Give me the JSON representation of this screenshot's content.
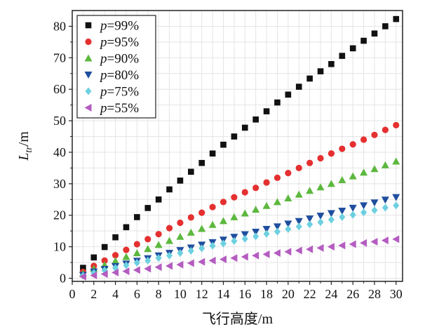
{
  "chart_data": {
    "type": "scatter",
    "title": "",
    "xlabel": "飞行高度/m",
    "ylabel_main": "L",
    "ylabel_sub": "tr",
    "ylabel_unit": "/m",
    "xlim": [
      0,
      30.6
    ],
    "ylim": [
      -1,
      85
    ],
    "xticks": [
      0,
      2,
      4,
      6,
      8,
      10,
      12,
      14,
      16,
      18,
      20,
      22,
      24,
      26,
      28,
      30
    ],
    "yticks": [
      0,
      10,
      20,
      30,
      40,
      50,
      60,
      70,
      80
    ],
    "x": [
      1,
      2,
      3,
      4,
      5,
      6,
      7,
      8,
      9,
      10,
      11,
      12,
      13,
      14,
      15,
      16,
      17,
      18,
      19,
      20,
      21,
      22,
      23,
      24,
      25,
      26,
      27,
      28,
      29,
      30
    ],
    "grid": true,
    "legend_position": "top-left",
    "series": [
      {
        "name": "p=99%",
        "legend_var": "p",
        "legend_rest": "=99%",
        "marker": "square",
        "color": "#111111",
        "values": [
          3.3,
          6.6,
          9.9,
          13.0,
          16.2,
          19.4,
          22.3,
          25.0,
          28.2,
          31.0,
          33.8,
          36.6,
          39.6,
          42.4,
          45.0,
          47.8,
          50.4,
          53.0,
          55.8,
          58.3,
          60.8,
          63.4,
          65.7,
          68.0,
          70.6,
          73.0,
          75.4,
          77.7,
          80.0,
          82.3
        ]
      },
      {
        "name": "p=95%",
        "legend_var": "p",
        "legend_rest": "=95%",
        "marker": "circle",
        "color": "#e53030",
        "values": [
          2.0,
          3.9,
          5.6,
          7.3,
          9.0,
          10.8,
          12.4,
          14.0,
          15.9,
          17.6,
          19.3,
          20.8,
          22.6,
          24.2,
          25.7,
          27.3,
          28.7,
          30.4,
          31.9,
          33.4,
          35.0,
          36.6,
          38.1,
          39.6,
          41.1,
          42.5,
          44.0,
          45.5,
          47.1,
          48.6
        ]
      },
      {
        "name": "p=90%",
        "legend_var": "p",
        "legend_rest": "=90%",
        "marker": "triangle-up",
        "color": "#5cb83e",
        "values": [
          1.5,
          3.0,
          4.2,
          5.5,
          6.8,
          8.0,
          9.3,
          10.6,
          11.9,
          13.2,
          14.5,
          15.7,
          17.0,
          18.2,
          19.4,
          20.6,
          21.8,
          23.0,
          24.2,
          25.4,
          26.6,
          27.8,
          28.9,
          30.0,
          31.2,
          32.4,
          33.6,
          34.7,
          35.9,
          37.1
        ]
      },
      {
        "name": "p=80%",
        "legend_var": "p",
        "legend_rest": "=80%",
        "marker": "triangle-down",
        "color": "#1f4e9e",
        "values": [
          1.0,
          2.1,
          2.9,
          3.8,
          4.6,
          5.5,
          6.3,
          7.2,
          8.0,
          8.9,
          9.7,
          10.6,
          11.4,
          12.2,
          13.1,
          13.9,
          14.7,
          15.6,
          16.4,
          17.3,
          18.1,
          18.9,
          19.8,
          20.6,
          21.4,
          22.3,
          23.1,
          24.0,
          24.9,
          25.7
        ]
      },
      {
        "name": "p=75%",
        "legend_var": "p",
        "legend_rest": "=75%",
        "marker": "diamond",
        "color": "#6dd0e0",
        "values": [
          0.8,
          1.7,
          2.5,
          3.3,
          4.1,
          4.9,
          5.6,
          6.4,
          7.2,
          8.0,
          8.7,
          9.5,
          10.3,
          11.0,
          11.8,
          12.5,
          13.3,
          14.1,
          14.8,
          15.6,
          16.4,
          17.1,
          17.8,
          18.6,
          19.4,
          20.1,
          20.9,
          21.6,
          22.4,
          23.1
        ]
      },
      {
        "name": "p=55%",
        "legend_var": "p",
        "legend_rest": "=55%",
        "marker": "triangle-left",
        "color": "#b45cc0",
        "values": [
          0.5,
          0.9,
          1.3,
          1.8,
          2.2,
          2.6,
          3.0,
          3.5,
          3.9,
          4.3,
          4.8,
          5.2,
          5.6,
          6.0,
          6.4,
          6.8,
          7.2,
          7.6,
          8.0,
          8.4,
          8.8,
          9.2,
          9.6,
          10.0,
          10.4,
          10.8,
          11.2,
          11.6,
          12.0,
          12.4
        ]
      }
    ]
  }
}
